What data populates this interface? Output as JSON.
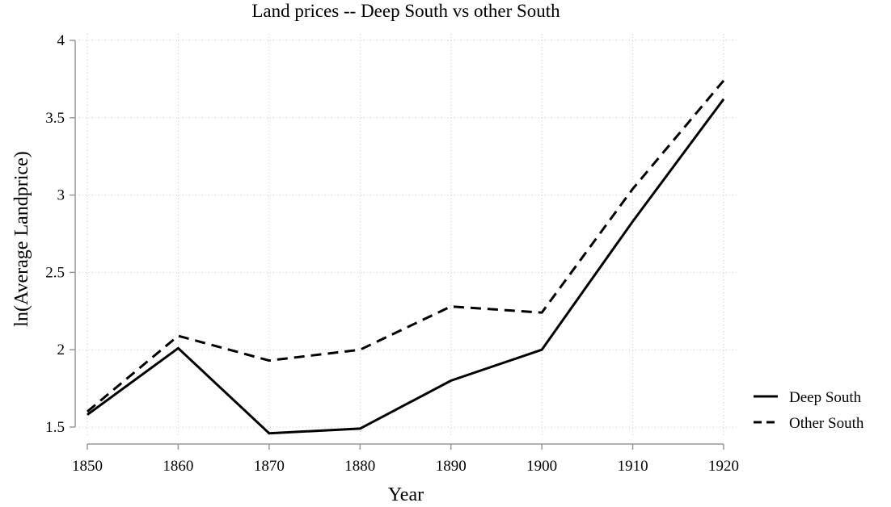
{
  "chart_data": {
    "type": "line",
    "title": "Land prices -- Deep South vs other South",
    "xlabel": "Year",
    "ylabel": "ln(Average Landprice)",
    "x": [
      1850,
      1860,
      1870,
      1880,
      1890,
      1900,
      1910,
      1920
    ],
    "xlim": [
      1850,
      1920
    ],
    "ylim": [
      1.5,
      4
    ],
    "x_ticks": [
      1850,
      1860,
      1870,
      1880,
      1890,
      1900,
      1910,
      1920
    ],
    "y_ticks": [
      1.5,
      2,
      2.5,
      3,
      3.5,
      4
    ],
    "x_tick_labels": [
      "1850",
      "1860",
      "1870",
      "1880",
      "1890",
      "1900",
      "1910",
      "1920"
    ],
    "y_tick_labels": [
      "1.5",
      "2",
      "2.5",
      "3",
      "3.5",
      "4"
    ],
    "grid": true,
    "legend_position": "right",
    "series": [
      {
        "name": "Deep South",
        "style": "solid",
        "color": "#000000",
        "values": [
          1.58,
          2.01,
          1.46,
          1.49,
          1.8,
          2.0,
          2.83,
          3.62
        ]
      },
      {
        "name": "Other South",
        "style": "dashed",
        "color": "#000000",
        "values": [
          1.6,
          2.09,
          1.93,
          2.0,
          2.28,
          2.24,
          3.04,
          3.74
        ]
      }
    ]
  }
}
